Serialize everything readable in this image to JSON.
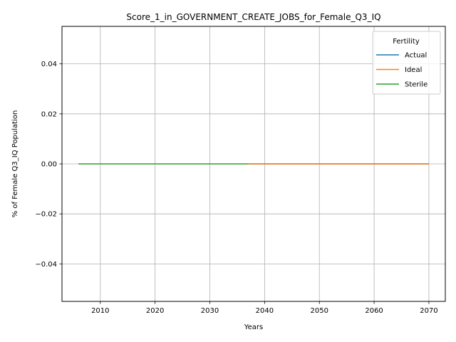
{
  "chart_data": {
    "type": "line",
    "title": "Score_1_in_GOVERNMENT_CREATE_JOBS_for_Female_Q3_IQ",
    "xlabel": "Years",
    "ylabel": "% of Female Q3_IQ Population",
    "xlim": [
      2003,
      2073
    ],
    "ylim": [
      -0.055,
      0.055
    ],
    "xticks": [
      2010,
      2020,
      2030,
      2040,
      2050,
      2060,
      2070
    ],
    "yticks": [
      -0.04,
      -0.02,
      0.0,
      0.02,
      0.04
    ],
    "ytick_labels": [
      "−0.04",
      "−0.02",
      "0.00",
      "0.02",
      "0.04"
    ],
    "grid": true,
    "legend": {
      "title": "Fertility",
      "placement": "top-right"
    },
    "series": [
      {
        "name": "Actual",
        "color": "#1f77b4",
        "x": [
          2037,
          2070
        ],
        "y": [
          0.0,
          0.0
        ]
      },
      {
        "name": "Ideal",
        "color": "#ff7f0e",
        "x": [
          2037,
          2070
        ],
        "y": [
          0.0,
          0.0
        ]
      },
      {
        "name": "Sterile",
        "color": "#2ca02c",
        "x": [
          2006,
          2037
        ],
        "y": [
          0.0,
          0.0
        ]
      }
    ]
  }
}
